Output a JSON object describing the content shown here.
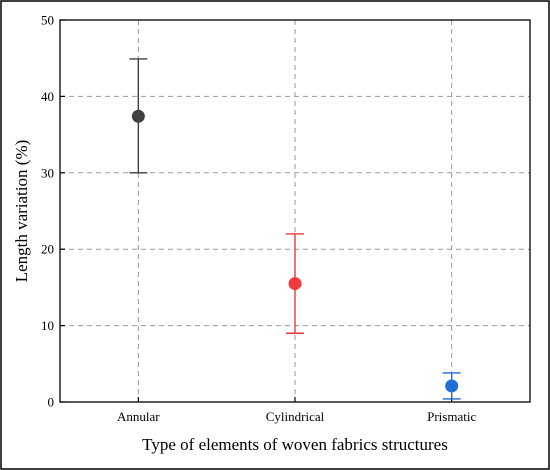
{
  "chart_data": {
    "type": "scatter",
    "xlabel": "Type of elements of woven fabrics structures",
    "ylabel": "Length variation (%)",
    "categories": [
      "Annular",
      "Cylindrical",
      "Prismatic"
    ],
    "ylim": [
      0,
      50
    ],
    "yticks": [
      0,
      10,
      20,
      30,
      40,
      50
    ],
    "grid": true,
    "points": [
      {
        "category": "Annular",
        "value": 37.4,
        "error_low": 30.0,
        "error_high": 44.9,
        "color": "#404040"
      },
      {
        "category": "Cylindrical",
        "value": 15.5,
        "error_low": 9.0,
        "error_high": 22.0,
        "color": "#f0393c"
      },
      {
        "category": "Prismatic",
        "value": 2.1,
        "error_low": 0.4,
        "error_high": 3.8,
        "color": "#1f6fd6"
      }
    ]
  }
}
